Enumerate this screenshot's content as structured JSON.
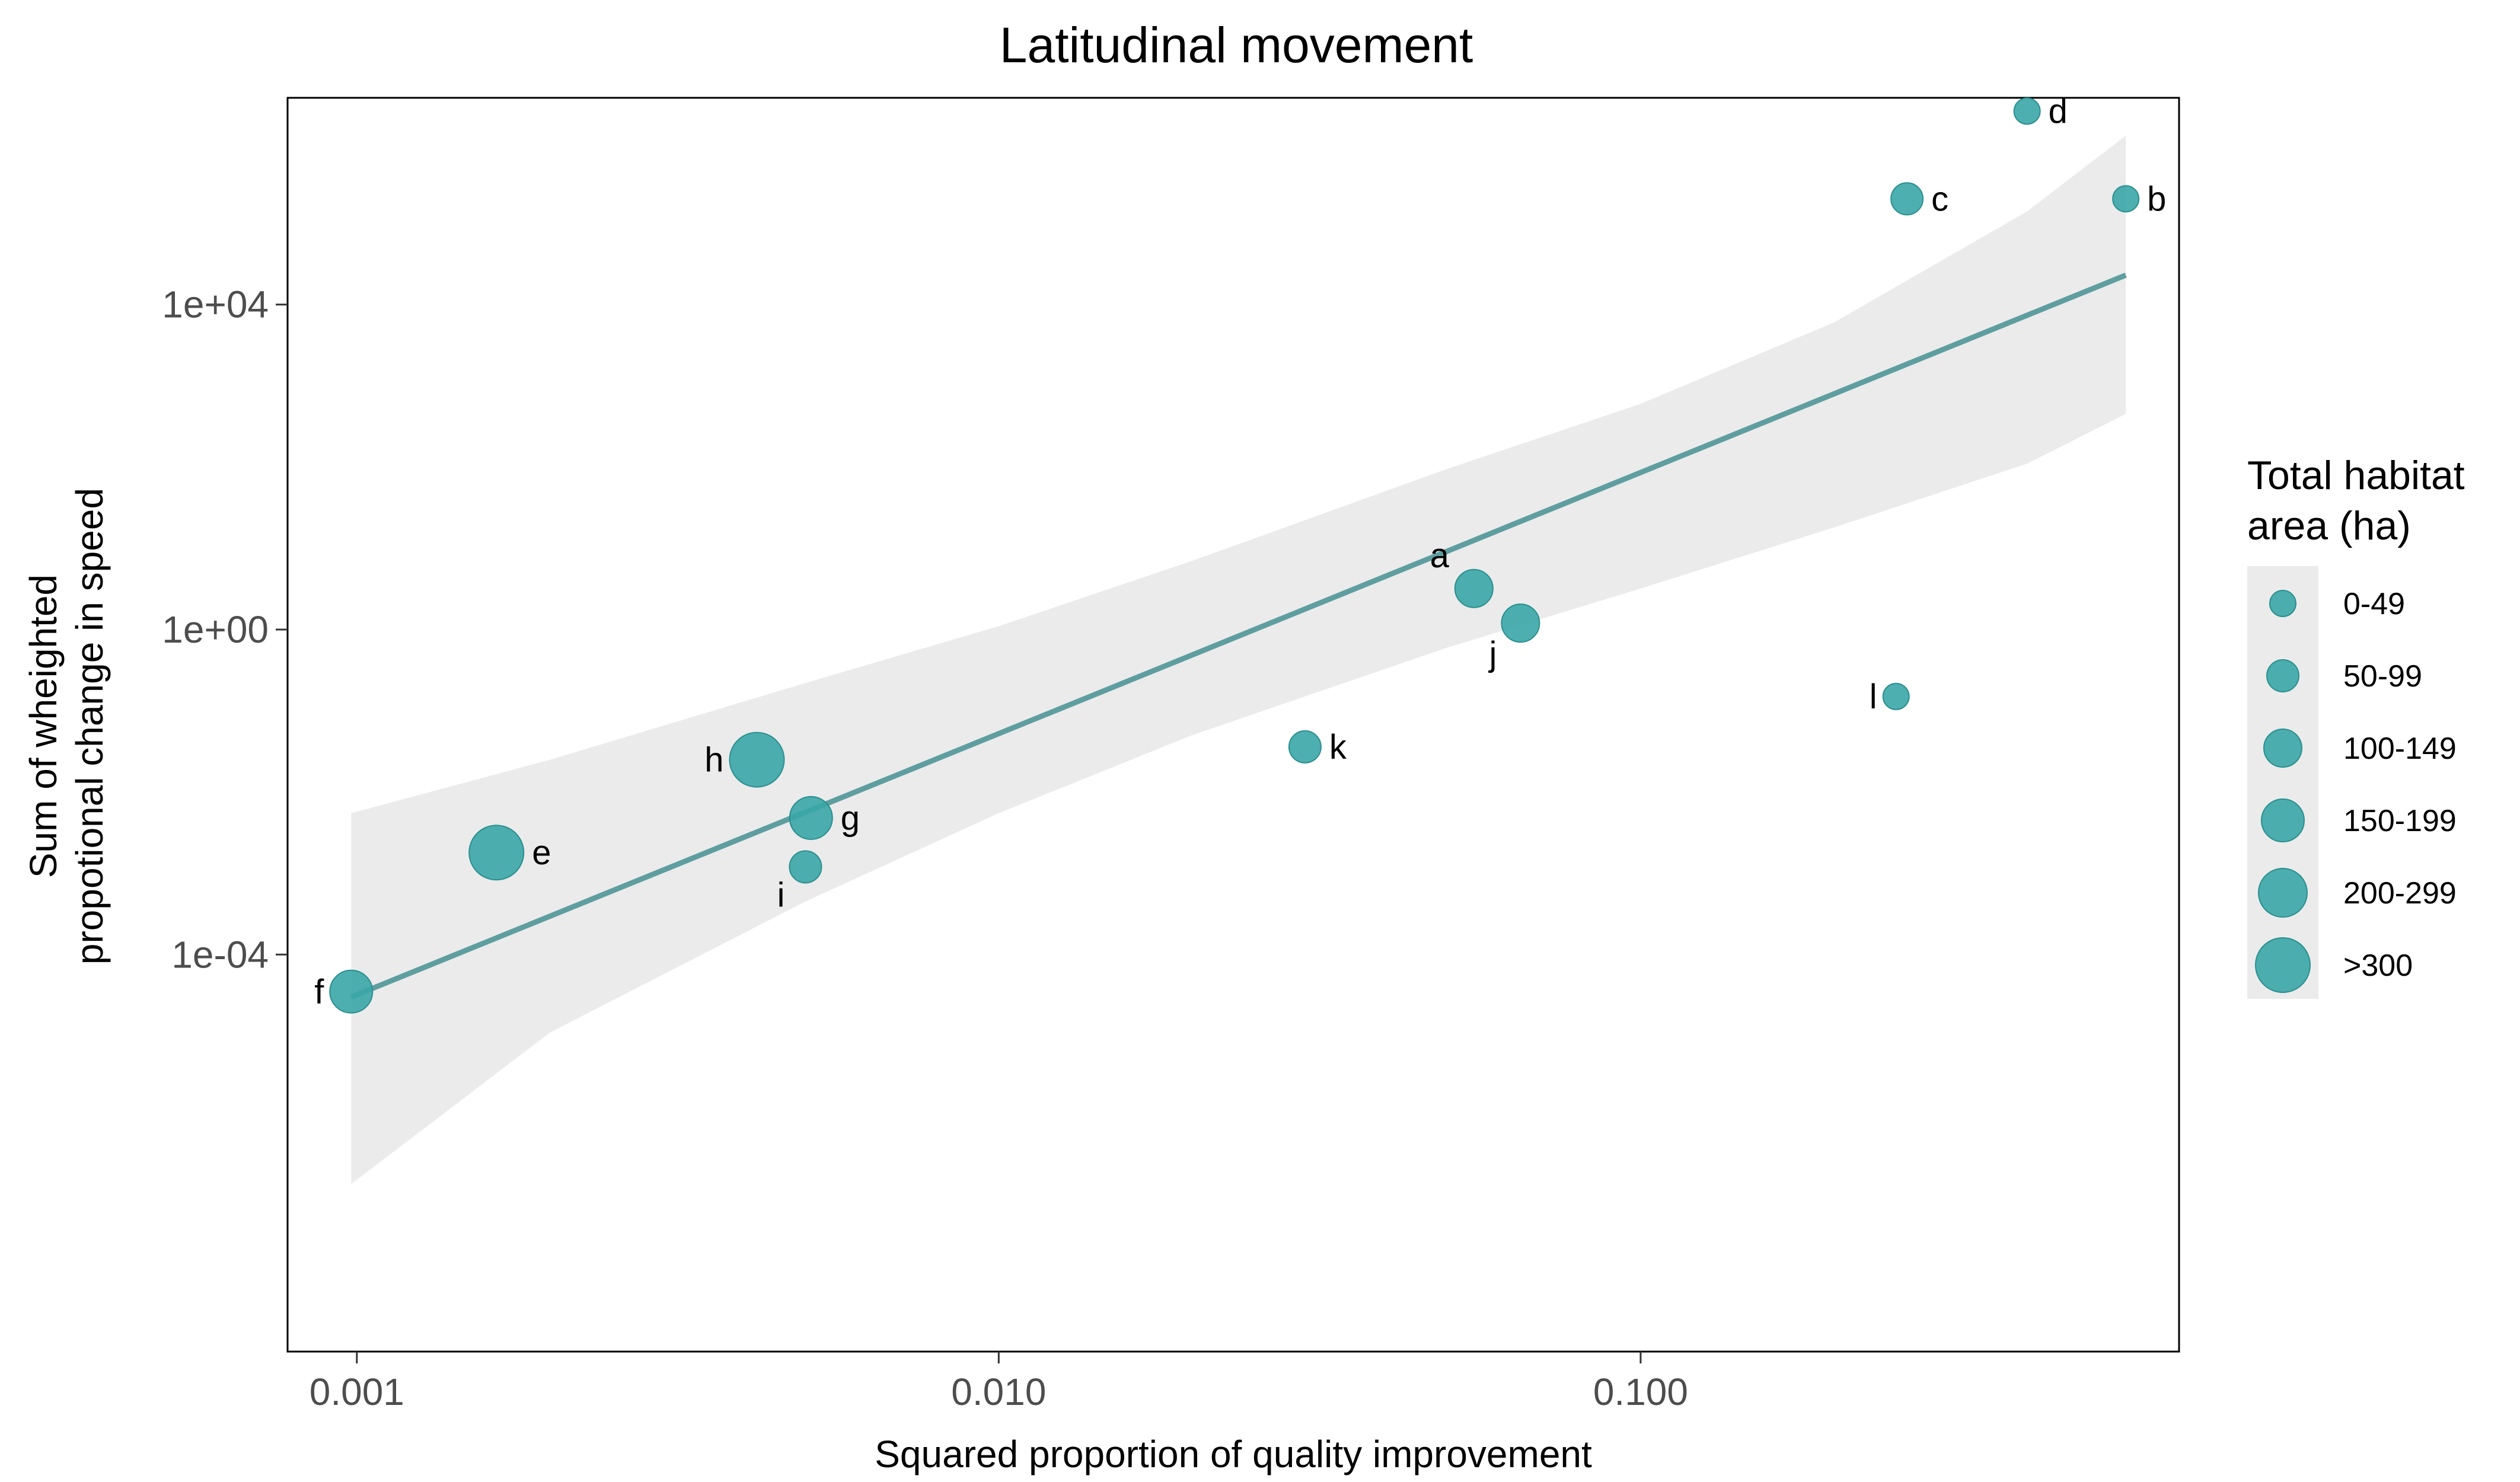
{
  "chart_data": {
    "type": "scatter",
    "title": "Latitudinal movement",
    "xlabel": "Squared proportion of quality improvement",
    "ylabel_lines": [
      "Sum of wheighted",
      "propotional change in speed"
    ],
    "x_scale": "log10",
    "y_scale": "log10",
    "xlim": [
      0.00078,
      0.69
    ],
    "ylim": [
      1.3e-09,
      3500000.0
    ],
    "x_ticks": [
      {
        "value": 0.001,
        "label": "0.001"
      },
      {
        "value": 0.01,
        "label": "0.010"
      },
      {
        "value": 0.1,
        "label": "0.100"
      }
    ],
    "y_ticks": [
      {
        "value": 0.0001,
        "label": "1e-04"
      },
      {
        "value": 1,
        "label": "1e+00"
      },
      {
        "value": 10000,
        "label": "1e+04"
      }
    ],
    "grid": false,
    "point_color": "#3aa6a6",
    "fit_color": "#5f9ea0",
    "band_color": "#ebebeb",
    "points": [
      {
        "label": "a",
        "x": 0.055,
        "y": 3.2,
        "size_class": 2
      },
      {
        "label": "b",
        "x": 0.57,
        "y": 200000,
        "size_class": 0
      },
      {
        "label": "c",
        "x": 0.26,
        "y": 200000,
        "size_class": 1
      },
      {
        "label": "d",
        "x": 0.4,
        "y": 2400000,
        "size_class": 0
      },
      {
        "label": "e",
        "x": 0.00165,
        "y": 0.0018,
        "size_class": 5
      },
      {
        "label": "f",
        "x": 0.00098,
        "y": 3.5e-05,
        "size_class": 3
      },
      {
        "label": "g",
        "x": 0.0051,
        "y": 0.0048,
        "size_class": 3
      },
      {
        "label": "h",
        "x": 0.0042,
        "y": 0.025,
        "size_class": 5
      },
      {
        "label": "i",
        "x": 0.005,
        "y": 0.0012,
        "size_class": 1
      },
      {
        "label": "j",
        "x": 0.065,
        "y": 1.2,
        "size_class": 2
      },
      {
        "label": "k",
        "x": 0.03,
        "y": 0.036,
        "size_class": 1
      },
      {
        "label": "l",
        "x": 0.25,
        "y": 0.15,
        "size_class": 0
      }
    ],
    "fit_line": {
      "x": [
        0.00098,
        0.57
      ],
      "y": [
        3e-05,
        23000
      ]
    },
    "confidence_band": {
      "x": [
        0.00098,
        0.002,
        0.005,
        0.01,
        0.02,
        0.05,
        0.1,
        0.2,
        0.4,
        0.57
      ],
      "lower": [
        1.5e-07,
        1.1e-05,
        0.00045,
        0.0055,
        0.05,
        0.6,
        3.2,
        18,
        110,
        450
      ],
      "upper": [
        0.0055,
        0.025,
        0.22,
        1.1,
        7,
        95,
        600,
        6000,
        140000,
        1200000
      ]
    },
    "legend": {
      "title_lines": [
        "Total habitat",
        "area (ha)"
      ],
      "placement": "right",
      "items": [
        "0-49",
        "50-99",
        "100-149",
        "150-199",
        "200-299",
        ">300"
      ]
    }
  }
}
